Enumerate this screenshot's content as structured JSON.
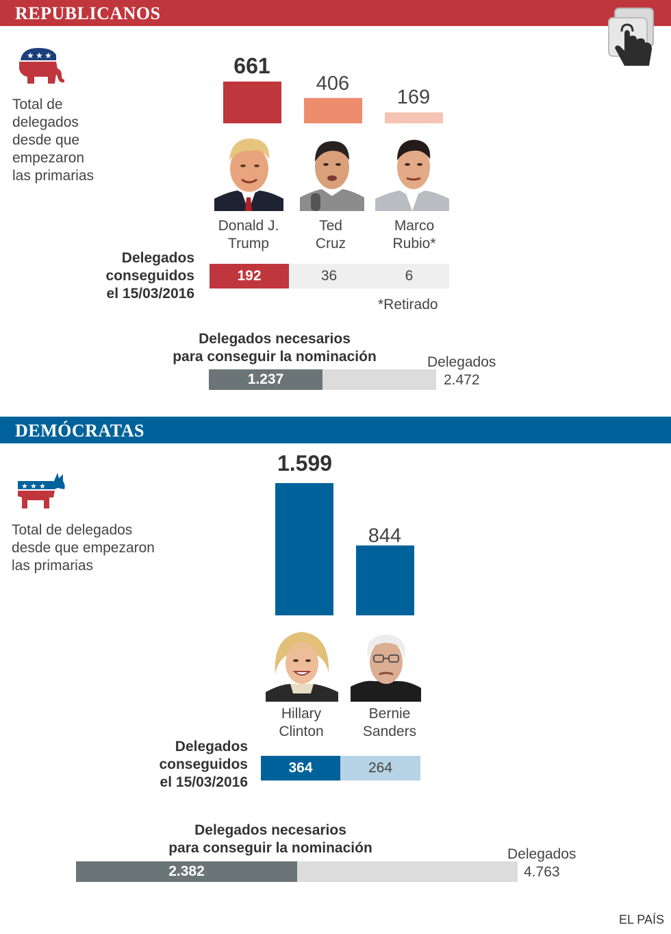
{
  "colors": {
    "republican": "#c0363d",
    "republican_mid": "#ee8c6e",
    "republican_light": "#f6c4b4",
    "democrat": "#00629b",
    "democrat_light": "#b7d3e6",
    "gray_dark": "#6b7577",
    "gray_light": "#dcdcdc",
    "cell_bg": "#efefef"
  },
  "republicanos": {
    "title": "REPUBLICANOS",
    "side_label": [
      "Total de",
      "delegados",
      "desde que",
      "empezaron",
      "las primarias"
    ],
    "delegates_label": [
      "Delegados",
      "conseguidos",
      "el 15/03/2016"
    ],
    "footnote": "*Retirado",
    "needed_label": [
      "Delegados necesarios",
      "para conseguir la nominación"
    ],
    "needed_value": "1.237",
    "total_label": "Delegados",
    "total_value": "2.472"
  },
  "democratas": {
    "title": "DEMÓCRATAS",
    "side_label": [
      "Total de delegados",
      "desde que empezaron",
      "las primarias"
    ],
    "delegates_label": [
      "Delegados",
      "conseguidos",
      "el 15/03/2016"
    ],
    "needed_label": [
      "Delegados necesarios",
      "para conseguir la nominación"
    ],
    "needed_value": "2.382",
    "total_label": "Delegados",
    "total_value": "4.763"
  },
  "footer": "EL PAÍS",
  "chart_data": [
    {
      "type": "bar",
      "title": "REPUBLICANOS — Total de delegados desde que empezaron las primarias",
      "categories": [
        "Donald J. Trump",
        "Ted Cruz",
        "Marco Rubio*"
      ],
      "name_lines": [
        [
          "Donald J.",
          "Trump"
        ],
        [
          "Ted",
          "Cruz"
        ],
        [
          "Marco",
          "Rubio*"
        ]
      ],
      "values": [
        661,
        406,
        169
      ],
      "value_labels": [
        "661",
        "406",
        "169"
      ],
      "daily_label": "Delegados conseguidos el 15/03/2016",
      "daily_values": [
        192,
        36,
        6
      ],
      "needed": 1237,
      "total": 2472
    },
    {
      "type": "bar",
      "title": "DEMÓCRATAS — Total de delegados desde que empezaron las primarias",
      "categories": [
        "Hillary Clinton",
        "Bernie Sanders"
      ],
      "name_lines": [
        [
          "Hillary",
          "Clinton"
        ],
        [
          "Bernie",
          "Sanders"
        ]
      ],
      "values": [
        1599,
        844
      ],
      "value_labels": [
        "1.599",
        "844"
      ],
      "daily_label": "Delegados conseguidos el 15/03/2016",
      "daily_values": [
        364,
        264
      ],
      "needed": 2382,
      "total": 4763
    }
  ]
}
